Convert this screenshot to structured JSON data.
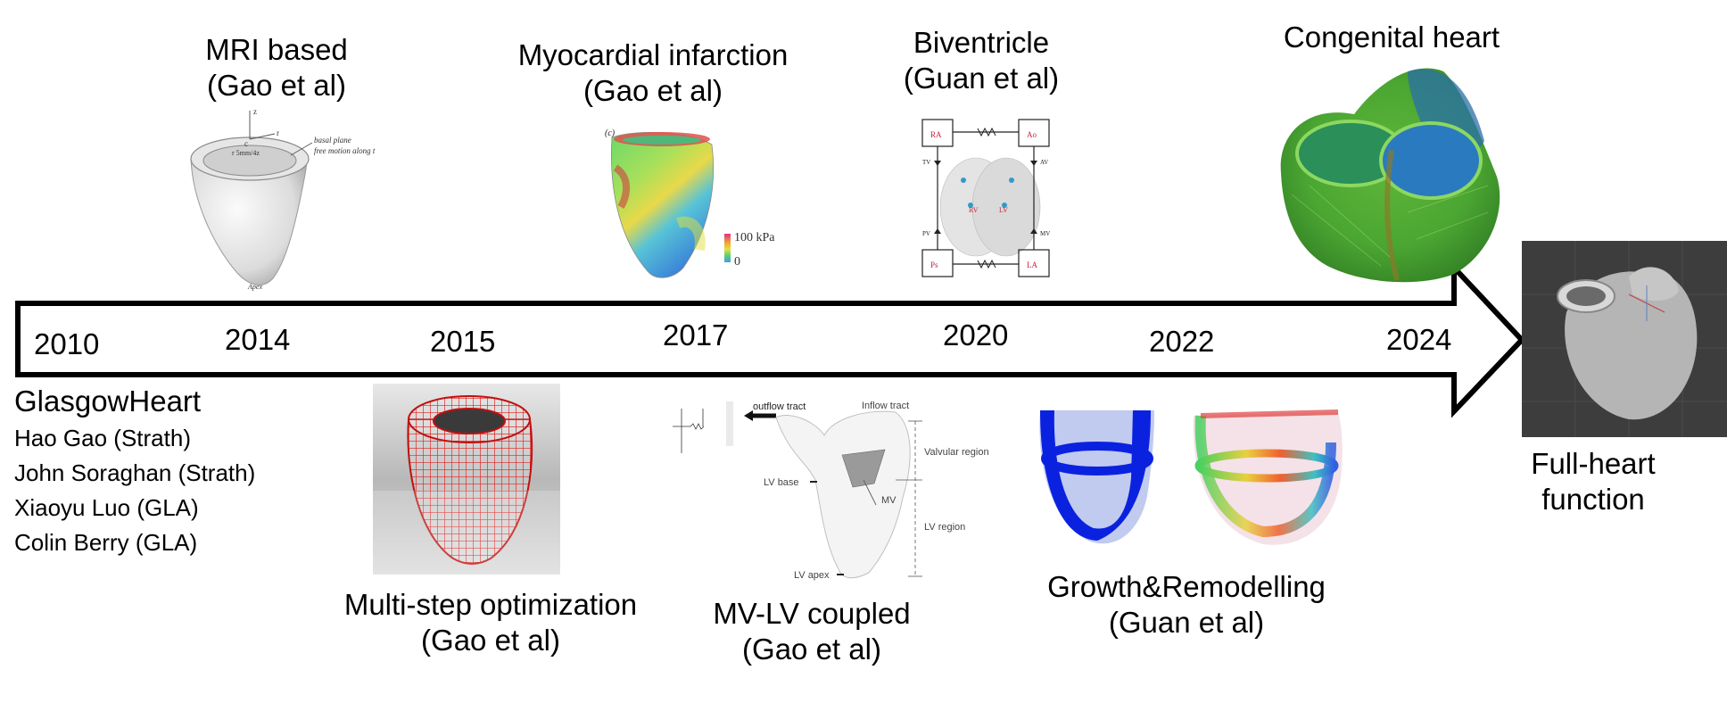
{
  "timeline": {
    "years": [
      "2010",
      "2014",
      "2015",
      "2017",
      "2020",
      "2022",
      "2024"
    ]
  },
  "team": {
    "name": "GlasgowHeart",
    "members": [
      "Hao Gao (Strath)",
      "John Soraghan (Strath)",
      "Xiaoyu Luo (GLA)",
      "Colin Berry (GLA)"
    ]
  },
  "milestones": {
    "mri": {
      "line1": "MRI based",
      "line2": "(Gao et al)"
    },
    "mi": {
      "line1": "Myocardial infarction",
      "line2": "(Gao et al)"
    },
    "biv": {
      "line1": "Biventricle",
      "line2": "(Guan et al)"
    },
    "congenital": {
      "line1": "Congenital heart"
    },
    "multistep": {
      "line1": "Multi-step optimization",
      "line2": "(Gao et al)"
    },
    "mvlv": {
      "line1": "MV-LV coupled",
      "line2": "(Gao et al)"
    },
    "growth": {
      "line1": "Growth&Remodelling",
      "line2": "(Guan et al)"
    },
    "fullheart": {
      "line1": "Full-heart",
      "line2": "function"
    }
  },
  "figure_labels": {
    "mri": {
      "basal": "basal plane",
      "free": "free motion along t",
      "apex": "Apex",
      "r": "r",
      "z": "z",
      "c": "c",
      "disp": "r 5mm/4z"
    },
    "mi": {
      "panel": "(c)",
      "max": "100 kPa",
      "min": "0"
    },
    "biv": {
      "ra": "RA",
      "ao": "Ao",
      "rv": "RV",
      "lv": "LV",
      "ps": "Ps",
      "la": "LA",
      "tv": "TV",
      "av": "AV",
      "pv": "PV",
      "mv": "MV"
    },
    "mvlv": {
      "outflow": "outflow tract",
      "inflow": "Inflow tract",
      "valvular": "Valvular region",
      "lvbase": "LV base",
      "mv": "MV",
      "lvregion": "LV region",
      "lvapex": "LV apex"
    }
  }
}
